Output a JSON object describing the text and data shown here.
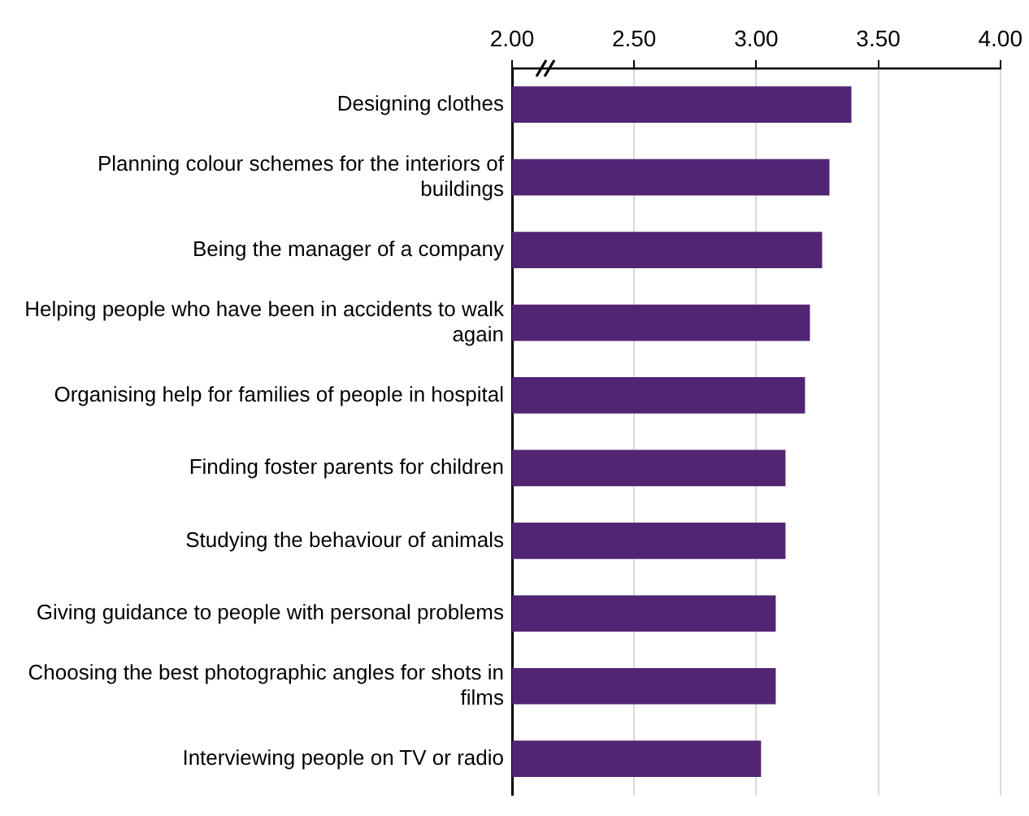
{
  "chart_data": {
    "type": "bar",
    "orientation": "horizontal",
    "categories": [
      "Designing clothes",
      "Planning colour schemes for the interiors of buildings",
      "Being the manager of a company",
      "Helping people who have been in accidents to walk again",
      "Organising help for families of people in hospital",
      "Finding foster parents for children",
      "Studying the behaviour of animals",
      "Giving guidance to people with personal problems",
      "Choosing the best photographic angles for shots in films",
      "Interviewing people on TV or radio"
    ],
    "values": [
      3.39,
      3.3,
      3.27,
      3.22,
      3.2,
      3.12,
      3.12,
      3.08,
      3.08,
      3.02
    ],
    "color": "#522574",
    "xlim": [
      2,
      4
    ],
    "xticks": [
      {
        "value": 2,
        "label": "2.00"
      },
      {
        "value": 2.5,
        "label": "2.50"
      },
      {
        "value": 3,
        "label": "3.00"
      },
      {
        "value": 3.5,
        "label": "3.50"
      },
      {
        "value": 4,
        "label": "4.00"
      }
    ],
    "grid": "x"
  }
}
